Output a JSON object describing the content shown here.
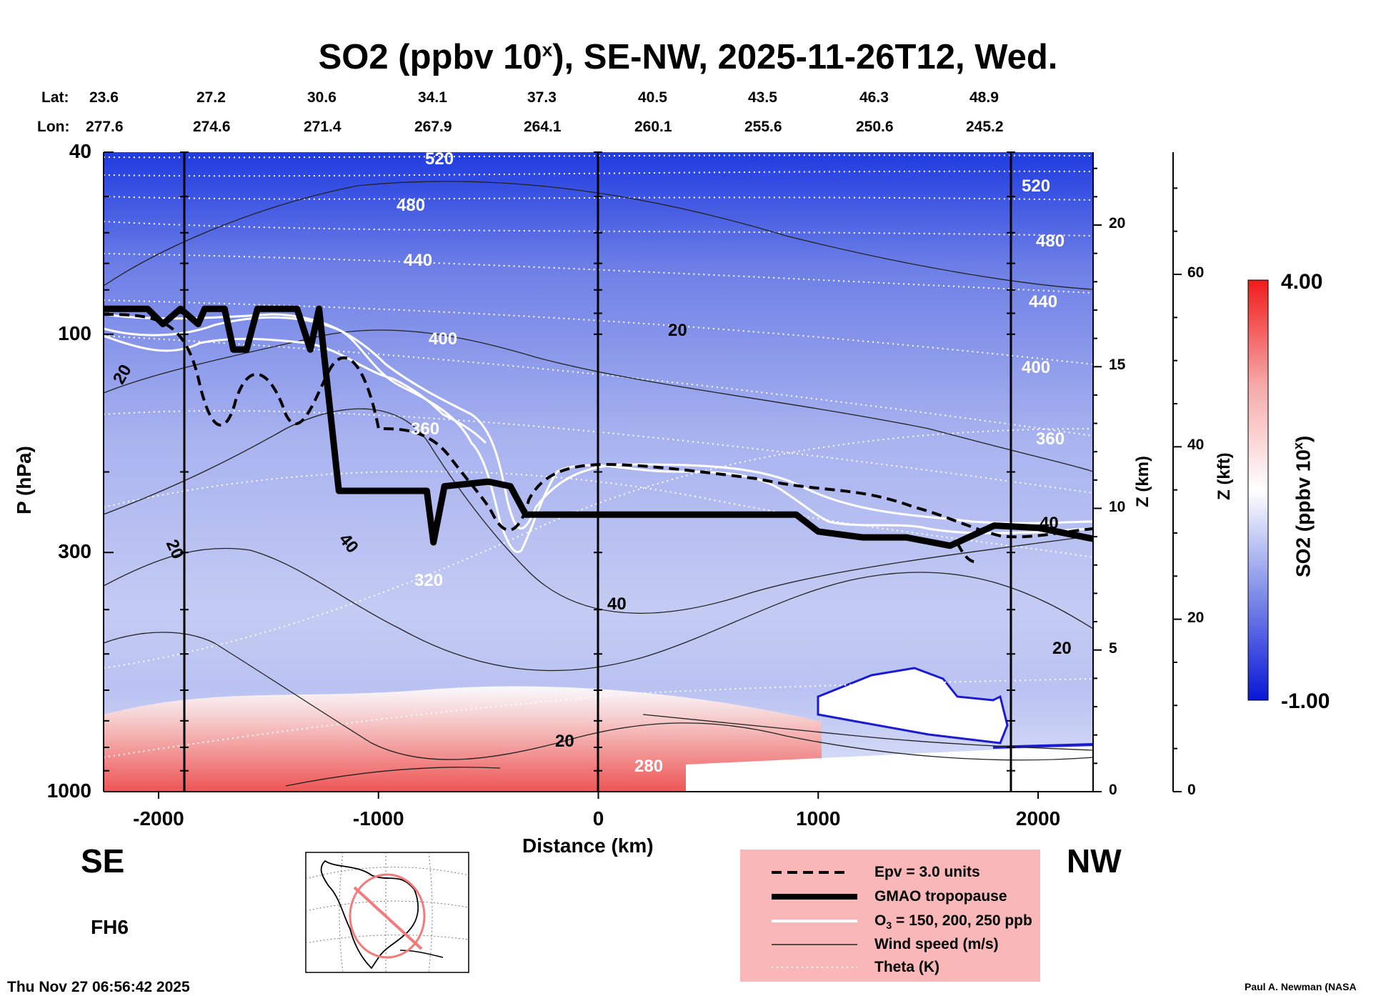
{
  "title": {
    "main": "SO2 (ppbv 10",
    "sup": "x",
    "rest": "), SE-NW, 2025-11-26T12, Wed."
  },
  "header": {
    "lat_label": "Lat:",
    "lon_label": "Lon:",
    "lat": [
      "23.6",
      "27.2",
      "30.6",
      "34.1",
      "37.3",
      "40.5",
      "43.5",
      "46.3",
      "48.9"
    ],
    "lon": [
      "277.6",
      "274.6",
      "271.4",
      "267.9",
      "264.1",
      "260.1",
      "255.6",
      "250.6",
      "245.2"
    ]
  },
  "chart_data": {
    "type": "heatmap",
    "title": "SO2 (ppbv 10^x), SE-NW, 2025-11-26T12, Wed.",
    "xlabel": "Distance (km)",
    "ylabel": "P (hPa)",
    "right_axis_1_label": "Z (km)",
    "right_axis_2_label": "Z (kft)",
    "xlim": [
      -2250,
      2250
    ],
    "ylim": [
      1000,
      40
    ],
    "y_scale": "log",
    "x_ticks": [
      "-2000",
      "-1000",
      "0",
      "1000",
      "2000"
    ],
    "y_ticks": [
      "40",
      "100",
      "300",
      "1000"
    ],
    "z_km_ticks": [
      "0",
      "5",
      "10",
      "15",
      "20"
    ],
    "z_kft_ticks": [
      "0",
      "20",
      "40",
      "60"
    ],
    "colorbar": {
      "label": "SO2 (ppbv 10^x)",
      "min": "-1.00",
      "max": "4.00",
      "colors": [
        "#0a17d6",
        "#ffffff",
        "#f21b1b"
      ]
    },
    "direction_left": "SE",
    "direction_right": "NW",
    "forecast_hour": "FH6",
    "theta_labels": [
      "520",
      "480",
      "440",
      "400",
      "360",
      "320",
      "280"
    ],
    "wind_labels": [
      "20",
      "40"
    ],
    "vertical_markers_km": [
      -1850,
      0,
      1850
    ],
    "tropopause_profile": [
      [
        -2250,
        88
      ],
      [
        -2050,
        88
      ],
      [
        -1980,
        95
      ],
      [
        -1900,
        88
      ],
      [
        -1820,
        95
      ],
      [
        -1790,
        88
      ],
      [
        -1700,
        88
      ],
      [
        -1660,
        108
      ],
      [
        -1600,
        108
      ],
      [
        -1550,
        88
      ],
      [
        -1370,
        88
      ],
      [
        -1310,
        108
      ],
      [
        -1270,
        88
      ],
      [
        -1180,
        220
      ],
      [
        -780,
        220
      ],
      [
        -750,
        285
      ],
      [
        -700,
        215
      ],
      [
        -500,
        210
      ],
      [
        -400,
        215
      ],
      [
        -330,
        248
      ],
      [
        0,
        248
      ],
      [
        900,
        248
      ],
      [
        1000,
        270
      ],
      [
        1200,
        278
      ],
      [
        1400,
        278
      ],
      [
        1600,
        290
      ],
      [
        1800,
        262
      ],
      [
        2000,
        265
      ],
      [
        2250,
        280
      ]
    ],
    "legend": [
      {
        "label": "Epv = 3.0 units",
        "style": "dashed-black"
      },
      {
        "label": "GMAO tropopause",
        "style": "thick-black"
      },
      {
        "label": "O",
        "sub": "3",
        "rest": " = 150, 200, 250 ppb",
        "style": "white"
      },
      {
        "label": "Wind speed (m/s)",
        "style": "thin-black"
      },
      {
        "label": "Theta (K)",
        "style": "dotted-white"
      }
    ]
  },
  "footer": {
    "timestamp": "Thu Nov 27 06:56:42 2025",
    "credit": "Paul A. Newman (NASA"
  }
}
